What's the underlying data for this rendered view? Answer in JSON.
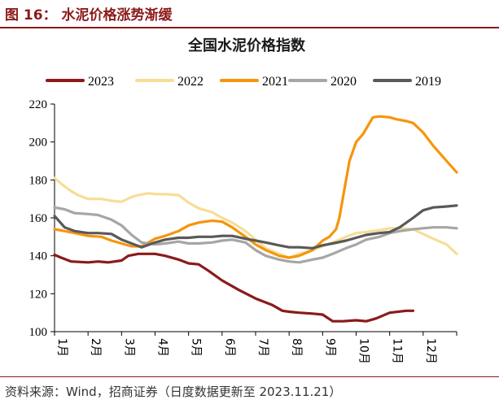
{
  "figure_label": "图 16：  水泥价格涨势渐缓",
  "source_text": "资料来源：Wind，招商证券（日度数据更新至 2023.11.21）",
  "chart_data": {
    "type": "line",
    "title": "全国水泥价格指数",
    "xlabel": "",
    "ylabel": "",
    "ylim": [
      100,
      220
    ],
    "yticks": [
      100,
      120,
      140,
      160,
      180,
      200,
      220
    ],
    "xlim": [
      1,
      13
    ],
    "xticks": [
      {
        "x": 1,
        "label": "1月"
      },
      {
        "x": 2,
        "label": "2月"
      },
      {
        "x": 3,
        "label": "3月"
      },
      {
        "x": 4,
        "label": "4月"
      },
      {
        "x": 5,
        "label": "5月"
      },
      {
        "x": 6,
        "label": "6月"
      },
      {
        "x": 7,
        "label": "7月"
      },
      {
        "x": 8,
        "label": "8月"
      },
      {
        "x": 9,
        "label": "9月"
      },
      {
        "x": 10,
        "label": "10月"
      },
      {
        "x": 11,
        "label": "11月"
      },
      {
        "x": 12,
        "label": "12月"
      }
    ],
    "grid": false,
    "legend_position": "top",
    "series": [
      {
        "name": "2023",
        "color": "#8b1a1a",
        "x": [
          1.0,
          1.2,
          1.5,
          2.0,
          2.3,
          2.6,
          3.0,
          3.2,
          3.5,
          4.0,
          4.3,
          4.7,
          5.0,
          5.3,
          5.6,
          6.0,
          6.5,
          7.0,
          7.5,
          7.8,
          8.0,
          8.3,
          8.7,
          9.0,
          9.3,
          9.6,
          10.0,
          10.3,
          10.6,
          11.0,
          11.5,
          11.7
        ],
        "values": [
          140.5,
          139,
          137,
          136.5,
          137,
          136.5,
          137.5,
          140,
          141,
          141,
          140,
          138,
          136,
          135.5,
          132,
          127,
          122,
          117.5,
          114,
          111,
          110.5,
          110,
          109.5,
          109,
          105.5,
          105.5,
          106,
          105.5,
          107,
          110,
          111,
          111
        ]
      },
      {
        "name": "2022",
        "color": "#f7dd96",
        "x": [
          1.0,
          1.2,
          1.5,
          1.7,
          2.0,
          2.4,
          2.7,
          3.0,
          3.3,
          3.5,
          3.8,
          4.0,
          4.3,
          4.7,
          5.0,
          5.3,
          5.7,
          6.0,
          6.3,
          6.7,
          7.0,
          7.3,
          7.7,
          8.0,
          8.3,
          8.7,
          9.0,
          9.3,
          9.7,
          10.0,
          10.3,
          10.7,
          11.0,
          11.3,
          11.7,
          12.0,
          12.3,
          12.7,
          13.0
        ],
        "values": [
          181,
          178,
          174,
          172,
          170,
          170,
          169,
          168.5,
          171,
          172,
          173,
          172.5,
          172.5,
          172,
          168,
          165,
          163,
          160,
          157.5,
          153,
          148.5,
          144,
          141,
          139,
          141,
          143,
          145,
          147,
          150,
          152,
          152.5,
          153.5,
          154.5,
          154.5,
          154,
          151.5,
          149,
          146,
          141
        ]
      },
      {
        "name": "2021",
        "color": "#f5950c",
        "x": [
          1.0,
          1.3,
          1.6,
          2.0,
          2.4,
          2.7,
          3.0,
          3.3,
          3.6,
          4.0,
          4.3,
          4.7,
          5.0,
          5.3,
          5.7,
          6.0,
          6.3,
          6.7,
          7.0,
          7.3,
          7.7,
          8.0,
          8.3,
          8.7,
          9.0,
          9.2,
          9.4,
          9.5,
          9.6,
          9.8,
          10.0,
          10.2,
          10.4,
          10.5,
          10.7,
          11.0,
          11.2,
          11.5,
          11.7,
          12.0,
          12.3,
          12.7,
          13.0
        ],
        "values": [
          154,
          153,
          152,
          150.5,
          150,
          148,
          146.5,
          145,
          145,
          149,
          150.5,
          153,
          156,
          157.5,
          158.5,
          158,
          155,
          150,
          146,
          143,
          140,
          139,
          140,
          143,
          148,
          150,
          154,
          160,
          170,
          190,
          200,
          204,
          210,
          213,
          213.5,
          213,
          212,
          211,
          210,
          205,
          198,
          190,
          184
        ]
      },
      {
        "name": "2020",
        "color": "#a6a6a6",
        "x": [
          1.0,
          1.3,
          1.6,
          2.0,
          2.3,
          2.7,
          3.0,
          3.3,
          3.6,
          4.0,
          4.3,
          4.7,
          5.0,
          5.3,
          5.7,
          6.0,
          6.3,
          6.7,
          7.0,
          7.3,
          7.7,
          8.0,
          8.3,
          8.7,
          9.0,
          9.3,
          9.7,
          10.0,
          10.3,
          10.7,
          11.0,
          11.3,
          11.7,
          12.0,
          12.3,
          12.7,
          13.0
        ],
        "values": [
          165.5,
          164.5,
          162.5,
          162,
          161.5,
          159,
          156,
          151,
          147,
          146,
          146.5,
          147.5,
          146.5,
          146.5,
          147,
          148,
          148.5,
          147,
          143,
          140,
          138,
          137,
          136.5,
          138,
          139,
          141,
          144,
          146,
          148.5,
          150,
          152,
          153,
          154,
          154.5,
          155,
          155,
          154.5
        ]
      },
      {
        "name": "2019",
        "color": "#595959",
        "x": [
          1.0,
          1.15,
          1.3,
          1.6,
          2.0,
          2.3,
          2.7,
          3.0,
          3.3,
          3.6,
          4.0,
          4.3,
          4.7,
          5.0,
          5.3,
          5.7,
          6.0,
          6.3,
          6.7,
          7.0,
          7.3,
          7.7,
          8.0,
          8.3,
          8.7,
          9.0,
          9.3,
          9.7,
          10.0,
          10.3,
          10.7,
          11.0,
          11.3,
          11.7,
          12.0,
          12.3,
          12.7,
          13.0
        ],
        "values": [
          161,
          158,
          155,
          153,
          152,
          152,
          151.5,
          148.5,
          146.5,
          144.5,
          147,
          148.5,
          149.5,
          149.5,
          150,
          150,
          150.5,
          150.5,
          149,
          148,
          147,
          145.5,
          144.5,
          144.5,
          144,
          145.5,
          146.5,
          148,
          149.5,
          151,
          152,
          152.5,
          155,
          160,
          164,
          165.5,
          166,
          166.5
        ]
      }
    ]
  }
}
